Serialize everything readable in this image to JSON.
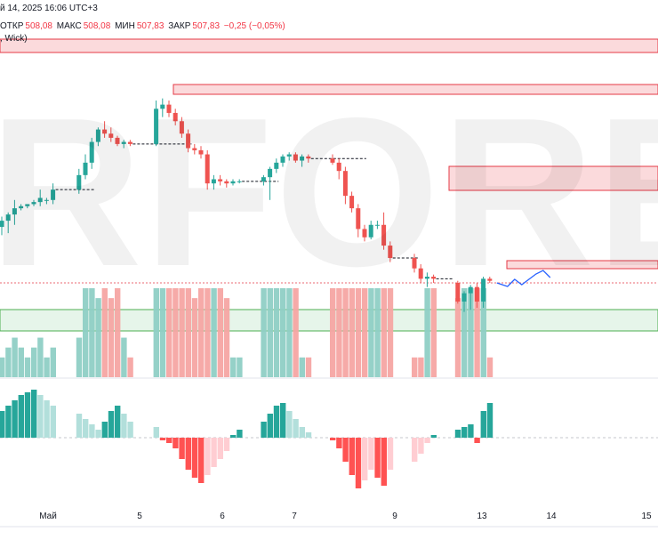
{
  "header": {
    "date_text": "й 14, 2025 16:06 UTC+3",
    "open_label": "ОТКР",
    "open_value": "508,08",
    "high_label": "МАКС",
    "high_value": "508,08",
    "low_label": "МИН",
    "low_value": "507,83",
    "close_label": "ЗАКР",
    "close_value": "507,83",
    "change_value": "−0,25 (−0,05%)",
    "sub_text": ", Wick)"
  },
  "watermark": {
    "text": "RFOREX",
    "mark": "1"
  },
  "colors": {
    "up": "#26a69a",
    "down": "#ef5350",
    "vol_up": "#8fcfc5",
    "vol_down": "#f5a5a3",
    "osc_up_strong": "#26a69a",
    "osc_up_weak": "#b2dfdb",
    "osc_down_strong": "#ff5252",
    "osc_down_weak": "#ffcdd2",
    "zone_red_fill": "#fbdadc",
    "zone_red_edge": "#e53946",
    "zone_green_fill": "#e6f5ea",
    "zone_green_edge": "#4caf50",
    "projection": "#2962ff",
    "dashed": "#131722"
  },
  "x_axis": {
    "ticks": [
      "Май",
      "5",
      "6",
      "7",
      "9",
      "13",
      "14",
      "15"
    ]
  },
  "chart_data": {
    "type": "candlestick",
    "y_axis": "price (unlabeled)",
    "ylim": [
      0,
      100
    ],
    "candles": [
      {
        "o": 27,
        "h": 32,
        "l": 23,
        "c": 30
      },
      {
        "o": 30,
        "h": 34,
        "l": 24,
        "c": 33
      },
      {
        "o": 33,
        "h": 40,
        "l": 28,
        "c": 36
      },
      {
        "o": 36,
        "h": 38,
        "l": 35,
        "c": 37
      },
      {
        "o": 37,
        "h": 38,
        "l": 36,
        "c": 38
      },
      {
        "o": 38,
        "h": 40,
        "l": 37,
        "c": 39
      },
      {
        "o": 39,
        "h": 45,
        "l": 37,
        "c": 41
      },
      {
        "o": 40,
        "h": 41,
        "l": 38,
        "c": 40
      },
      {
        "o": 40,
        "h": 48,
        "l": 38,
        "c": 45
      },
      {
        "o": 45,
        "h": 55,
        "l": 43,
        "c": 52
      },
      {
        "o": 52,
        "h": 62,
        "l": 50,
        "c": 58
      },
      {
        "o": 58,
        "h": 70,
        "l": 55,
        "c": 68
      },
      {
        "o": 68,
        "h": 75,
        "l": 66,
        "c": 74
      },
      {
        "o": 74,
        "h": 78,
        "l": 70,
        "c": 72
      },
      {
        "o": 72,
        "h": 75,
        "l": 68,
        "c": 70
      },
      {
        "o": 70,
        "h": 71,
        "l": 66,
        "c": 67
      },
      {
        "o": 67,
        "h": 69,
        "l": 65,
        "c": 68
      },
      {
        "o": 68,
        "h": 69,
        "l": 66,
        "c": 67
      },
      {
        "o": 67,
        "h": 88,
        "l": 66,
        "c": 84
      },
      {
        "o": 84,
        "h": 89,
        "l": 80,
        "c": 86
      },
      {
        "o": 86,
        "h": 88,
        "l": 80,
        "c": 82
      },
      {
        "o": 82,
        "h": 84,
        "l": 76,
        "c": 78
      },
      {
        "o": 78,
        "h": 80,
        "l": 70,
        "c": 72
      },
      {
        "o": 72,
        "h": 74,
        "l": 63,
        "c": 65
      },
      {
        "o": 65,
        "h": 67,
        "l": 62,
        "c": 64
      },
      {
        "o": 64,
        "h": 66,
        "l": 60,
        "c": 62
      },
      {
        "o": 62,
        "h": 64,
        "l": 45,
        "c": 48
      },
      {
        "o": 48,
        "h": 52,
        "l": 45,
        "c": 50
      },
      {
        "o": 50,
        "h": 52,
        "l": 47,
        "c": 49
      },
      {
        "o": 49,
        "h": 50,
        "l": 46,
        "c": 48
      },
      {
        "o": 48,
        "h": 50,
        "l": 47,
        "c": 49
      },
      {
        "o": 49,
        "h": 50,
        "l": 48,
        "c": 49
      },
      {
        "o": 49,
        "h": 52,
        "l": 47,
        "c": 51
      },
      {
        "o": 51,
        "h": 56,
        "l": 40,
        "c": 55
      },
      {
        "o": 55,
        "h": 60,
        "l": 53,
        "c": 58
      },
      {
        "o": 58,
        "h": 62,
        "l": 56,
        "c": 61
      },
      {
        "o": 61,
        "h": 63,
        "l": 59,
        "c": 62
      },
      {
        "o": 62,
        "h": 63,
        "l": 58,
        "c": 59
      },
      {
        "o": 59,
        "h": 62,
        "l": 56,
        "c": 61
      },
      {
        "o": 61,
        "h": 62,
        "l": 58,
        "c": 60
      },
      {
        "o": 60,
        "h": 62,
        "l": 57,
        "c": 58
      },
      {
        "o": 58,
        "h": 60,
        "l": 50,
        "c": 54
      },
      {
        "o": 54,
        "h": 56,
        "l": 38,
        "c": 42
      },
      {
        "o": 42,
        "h": 44,
        "l": 34,
        "c": 36
      },
      {
        "o": 36,
        "h": 38,
        "l": 22,
        "c": 26
      },
      {
        "o": 26,
        "h": 28,
        "l": 20,
        "c": 22
      },
      {
        "o": 22,
        "h": 30,
        "l": 21,
        "c": 28
      },
      {
        "o": 28,
        "h": 30,
        "l": 26,
        "c": 28
      },
      {
        "o": 28,
        "h": 34,
        "l": 16,
        "c": 18
      },
      {
        "o": 18,
        "h": 20,
        "l": 10,
        "c": 12
      },
      {
        "o": 12,
        "h": 14,
        "l": 5,
        "c": 7
      },
      {
        "o": 7,
        "h": 9,
        "l": 0,
        "c": 2
      },
      {
        "o": 2,
        "h": 5,
        "l": -2,
        "c": 3
      },
      {
        "o": 3,
        "h": 4,
        "l": 0,
        "c": 2
      },
      {
        "o": 0,
        "h": 1,
        "l": -10,
        "c": -9
      },
      {
        "o": -9,
        "h": -4,
        "l": -14,
        "c": -5
      },
      {
        "o": -5,
        "h": -1,
        "l": -13,
        "c": -2
      },
      {
        "o": -2,
        "h": 0,
        "l": -12,
        "c": -9
      },
      {
        "o": -9,
        "h": 3,
        "l": -12,
        "c": 2
      },
      {
        "o": 2,
        "h": 3,
        "l": 0,
        "c": 1
      }
    ],
    "volume": [
      2,
      3,
      4,
      3,
      2,
      3,
      4,
      2,
      3,
      4,
      9,
      9,
      8,
      9,
      8,
      9,
      4,
      2,
      9,
      9,
      9,
      9,
      9,
      9,
      8,
      9,
      9,
      9,
      9,
      8,
      2,
      2,
      9,
      9,
      9,
      9,
      9,
      9,
      2,
      2,
      9,
      9,
      9,
      9,
      9,
      9,
      9,
      9,
      9,
      9,
      2,
      2,
      9,
      9,
      8,
      9,
      9,
      9,
      9,
      2
    ],
    "oscillator": [
      0.5,
      0.6,
      0.7,
      0.8,
      0.85,
      0.9,
      0.8,
      0.7,
      0.6,
      0.45,
      0.35,
      0.25,
      0.15,
      0.3,
      0.5,
      0.6,
      0.45,
      0.3,
      0.2,
      -0.05,
      -0.1,
      -0.2,
      -0.4,
      -0.6,
      -0.75,
      -0.85,
      -0.7,
      -0.55,
      -0.4,
      -0.25,
      0.05,
      0.15,
      0.3,
      0.45,
      0.6,
      0.65,
      0.5,
      0.35,
      0.2,
      0.1,
      -0.05,
      -0.2,
      -0.45,
      -0.7,
      -0.95,
      -0.8,
      -0.6,
      -0.75,
      -0.9,
      -0.6,
      -0.45,
      -0.3,
      -0.1,
      0.05,
      0.15,
      0.2,
      0.25,
      -0.1,
      0.5,
      0.65
    ]
  }
}
